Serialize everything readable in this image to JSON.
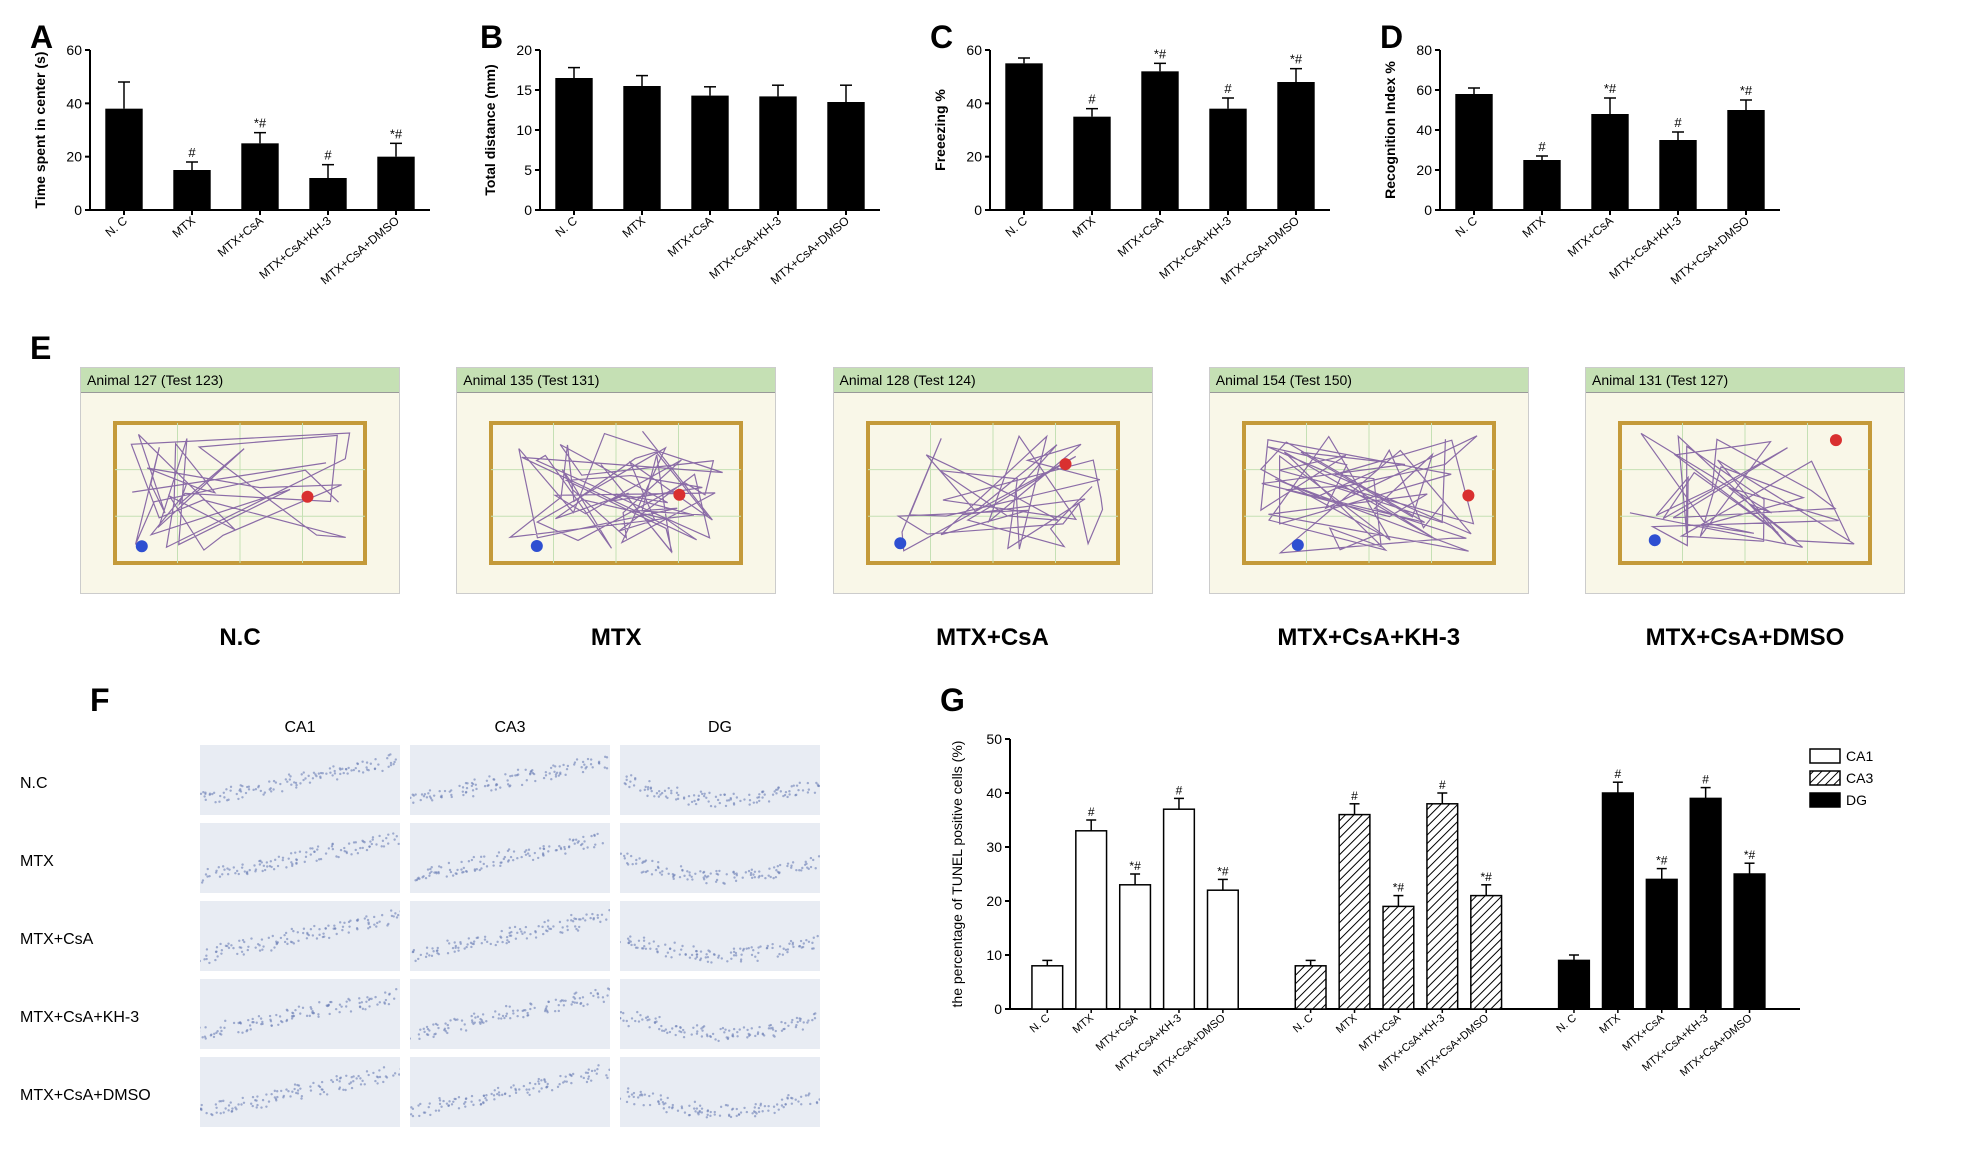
{
  "panel_labels": {
    "A": "A",
    "B": "B",
    "C": "C",
    "D": "D",
    "E": "E",
    "F": "F",
    "G": "G"
  },
  "groups": [
    "N. C",
    "MTX",
    "MTX+CsA",
    "MTX+CsA+KH-3",
    "MTX+CsA+DMSO"
  ],
  "chartA": {
    "type": "bar",
    "ylabel": "Time spent in center (s)",
    "ylim": [
      0,
      60
    ],
    "ytick_step": 20,
    "values": [
      38,
      15,
      25,
      12,
      20
    ],
    "errors": [
      10,
      3,
      4,
      5,
      5
    ],
    "annotations": [
      "",
      "#",
      "*#",
      "#",
      "*#"
    ],
    "bar_color": "#000000",
    "axis_color": "#000000",
    "label_fontsize": 14
  },
  "chartB": {
    "type": "bar",
    "ylabel": "Total distance (mm)",
    "ylim": [
      0,
      20
    ],
    "ytick_step": 5,
    "values": [
      16.5,
      15.5,
      14.3,
      14.2,
      13.5
    ],
    "errors": [
      1.3,
      1.3,
      1.1,
      1.4,
      2.1
    ],
    "annotations": [
      "",
      "",
      "",
      "",
      ""
    ],
    "bar_color": "#000000",
    "axis_color": "#000000",
    "label_fontsize": 14
  },
  "chartC": {
    "type": "bar",
    "ylabel": "Freeezing %",
    "ylim": [
      0,
      60
    ],
    "ytick_step": 20,
    "values": [
      55,
      35,
      52,
      38,
      48
    ],
    "errors": [
      2,
      3,
      3,
      4,
      5
    ],
    "annotations": [
      "",
      "#",
      "*#",
      "#",
      "*#"
    ],
    "bar_color": "#000000",
    "axis_color": "#000000",
    "label_fontsize": 14
  },
  "chartD": {
    "type": "bar",
    "ylabel": "Recognition Index %",
    "ylim": [
      0,
      80
    ],
    "ytick_step": 20,
    "values": [
      58,
      25,
      48,
      35,
      50
    ],
    "errors": [
      3,
      2,
      8,
      4,
      5
    ],
    "annotations": [
      "",
      "#",
      "*#",
      "#",
      "*#"
    ],
    "bar_color": "#000000",
    "axis_color": "#000000",
    "label_fontsize": 14
  },
  "panelE": {
    "cards": [
      {
        "title": "Animal 127 (Test 123)",
        "label": "N.C"
      },
      {
        "title": "Animal 135 (Test 131)",
        "label": "MTX"
      },
      {
        "title": "Animal 128 (Test 124)",
        "label": "MTX+CsA"
      },
      {
        "title": "Animal 154 (Test 150)",
        "label": "MTX+CsA+KH-3"
      },
      {
        "title": "Animal 131 (Test 127)",
        "label": "MTX+CsA+DMSO"
      }
    ],
    "track_border": "#c49a3a",
    "track_bg": "#f9f7e8",
    "track_line": "#7e5ca0",
    "start_dot": "#2e4fd1",
    "end_dot": "#d93030",
    "grid_line": "#c5e0b4"
  },
  "panelF": {
    "col_labels": [
      "CA1",
      "CA3",
      "DG"
    ],
    "row_labels": [
      "N.C",
      "MTX",
      "MTX+CsA",
      "MTX+CsA+KH-3",
      "MTX+CsA+DMSO"
    ],
    "cell_bg": "#e8ecf3",
    "cell_dot": "#6a7fb5"
  },
  "panelG": {
    "type": "grouped-bar",
    "ylabel": "the percentage of TUNEL positive cells (%)",
    "ylim": [
      0,
      50
    ],
    "ytick_step": 10,
    "legend": [
      "CA1",
      "CA3",
      "DG"
    ],
    "legend_fill": [
      "none",
      "hatch",
      "#000000"
    ],
    "groups": [
      "N. C",
      "MTX",
      "MTX+CsA",
      "MTX+CsA+KH-3",
      "MTX+CsA+DMSO"
    ],
    "series": {
      "CA1": {
        "values": [
          8,
          33,
          23,
          37,
          22
        ],
        "errors": [
          1,
          2,
          2,
          2,
          2
        ],
        "annotations": [
          "",
          "#",
          "*#",
          "#",
          "*#"
        ]
      },
      "CA3": {
        "values": [
          8,
          36,
          19,
          38,
          21
        ],
        "errors": [
          1,
          2,
          2,
          2,
          2
        ],
        "annotations": [
          "",
          "#",
          "*#",
          "#",
          "*#"
        ]
      },
      "DG": {
        "values": [
          9,
          40,
          24,
          39,
          25
        ],
        "errors": [
          1,
          2,
          2,
          2,
          2
        ],
        "annotations": [
          "",
          "#",
          "*#",
          "#",
          "*#"
        ]
      }
    },
    "axis_color": "#000000",
    "label_fontsize": 14
  }
}
